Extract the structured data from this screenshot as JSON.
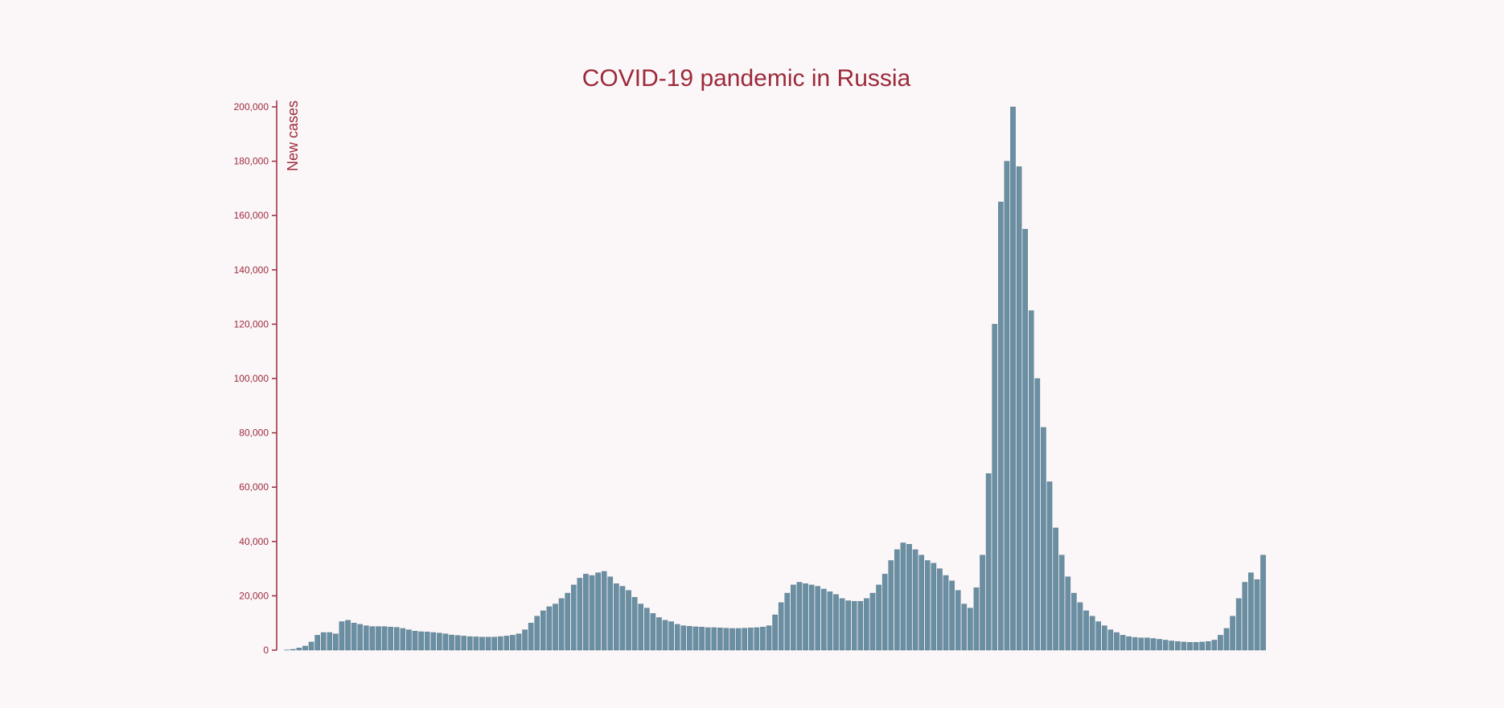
{
  "colors": {
    "background": "#fbf7f9",
    "accent": "#9c2a3a",
    "bar": "#6b8fa2",
    "bar_stroke": "#4f7285"
  },
  "chart_data": {
    "type": "bar",
    "title": "COVID-19 pandemic in Russia",
    "ylabel": "New cases",
    "xlabel": "",
    "ylim": [
      0,
      200000
    ],
    "yticks": [
      0,
      20000,
      40000,
      60000,
      80000,
      100000,
      120000,
      140000,
      160000,
      180000,
      200000
    ],
    "ytick_labels": [
      "0",
      "20,000",
      "40,000",
      "60,000",
      "80,000",
      "100,000",
      "120,000",
      "140,000",
      "160,000",
      "180,000",
      "200,000"
    ],
    "grid": false,
    "series": [
      {
        "values": [
          0,
          100,
          300,
          800,
          1500,
          3000,
          5500,
          6500,
          6500,
          6000,
          10500,
          11000,
          10000,
          9500,
          9000,
          8700,
          8700,
          8700,
          8500,
          8400,
          8000,
          7500,
          7000,
          6800,
          6700,
          6500,
          6300,
          6000,
          5600,
          5400,
          5200,
          5000,
          4900,
          4800,
          4800,
          4800,
          5000,
          5200,
          5500,
          6000,
          7500,
          10000,
          12500,
          14500,
          16000,
          17000,
          19000,
          21000,
          24000,
          26500,
          28000,
          27500,
          28500,
          29000,
          27000,
          24500,
          23500,
          22000,
          19500,
          17000,
          15500,
          13500,
          12000,
          11000,
          10500,
          9500,
          9000,
          8800,
          8600,
          8500,
          8300,
          8300,
          8200,
          8100,
          8000,
          8000,
          8100,
          8200,
          8300,
          8500,
          9000,
          13000,
          17500,
          21000,
          24000,
          25000,
          24500,
          24000,
          23500,
          22500,
          21500,
          20500,
          19000,
          18200,
          18000,
          18000,
          19000,
          21000,
          24000,
          28000,
          33000,
          37000,
          39500,
          39000,
          37000,
          35000,
          33000,
          32000,
          30000,
          27500,
          25500,
          22000,
          17000,
          15500,
          23000,
          35000,
          65000,
          120000,
          165000,
          180000,
          200000,
          178000,
          155000,
          125000,
          100000,
          82000,
          62000,
          45000,
          35000,
          27000,
          21000,
          17500,
          14500,
          12500,
          10500,
          9000,
          7500,
          6500,
          5500,
          5000,
          4700,
          4500,
          4500,
          4300,
          4000,
          3700,
          3400,
          3200,
          3000,
          2900,
          2900,
          3000,
          3200,
          3700,
          5500,
          8000,
          12500,
          19000,
          25000,
          28500,
          26000,
          35000
        ]
      }
    ]
  }
}
